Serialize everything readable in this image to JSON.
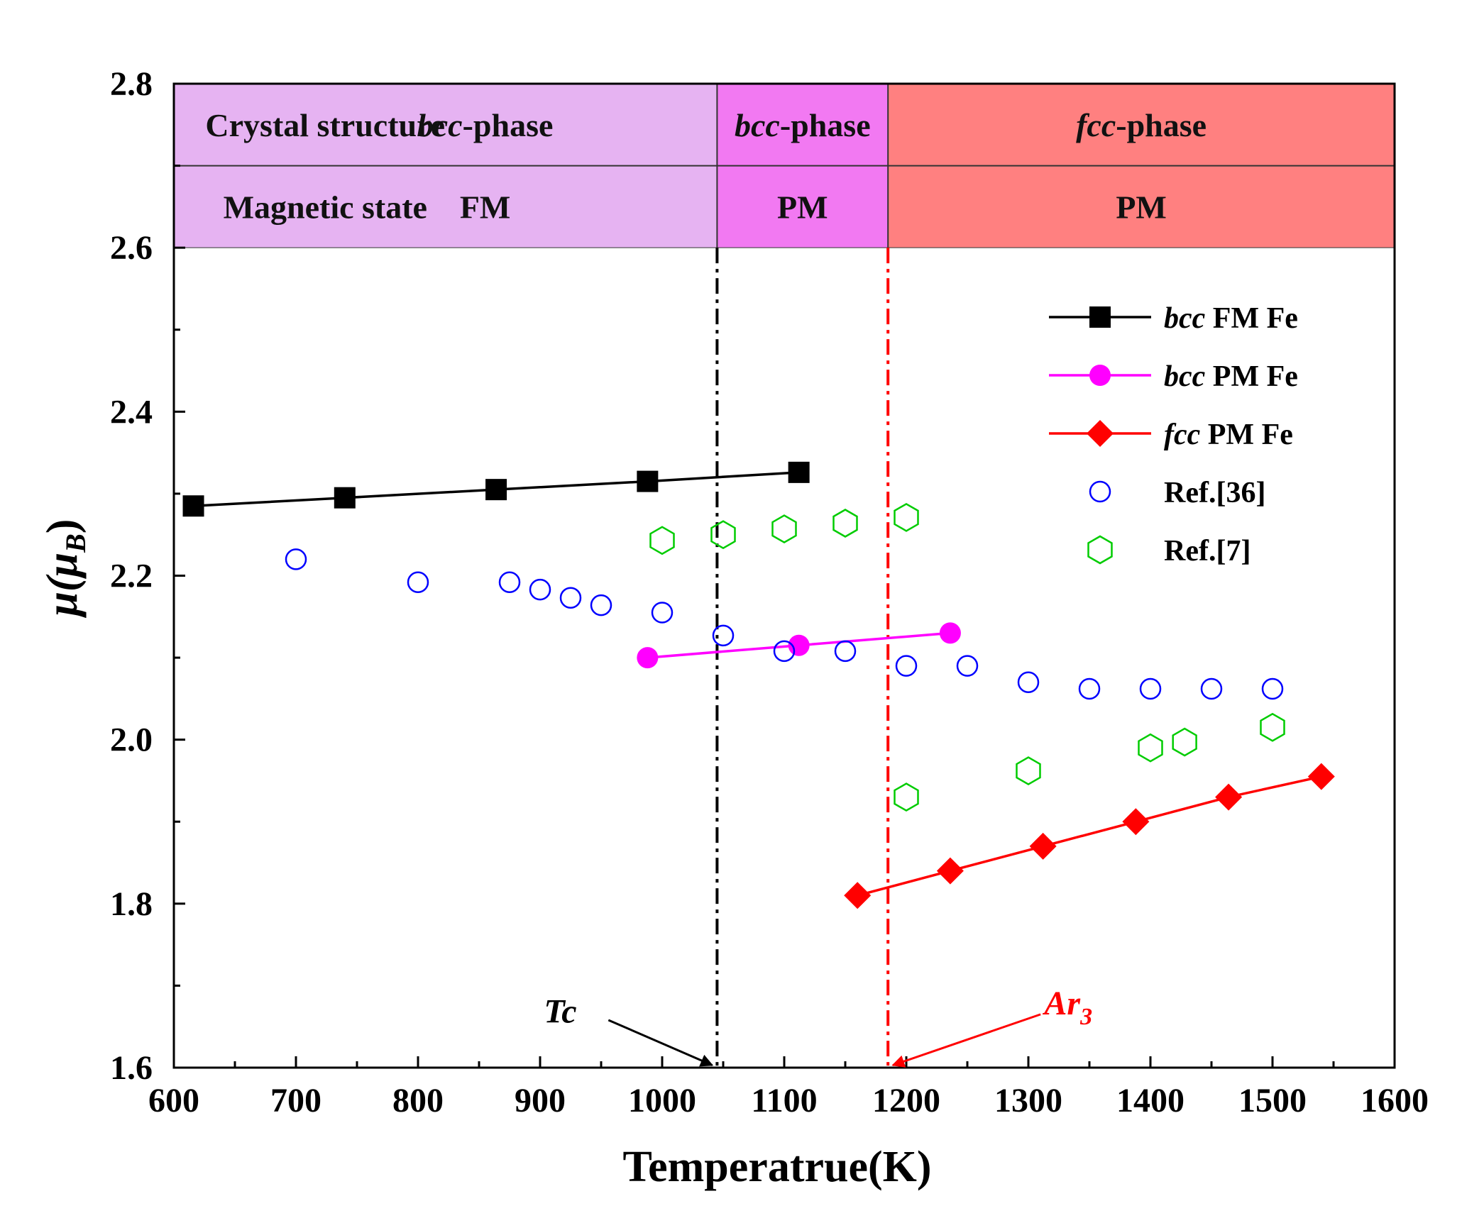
{
  "chart_data": {
    "type": "line",
    "xlabel": "Temperatrue(K)",
    "ylabel_main": "μ(μ",
    "ylabel_sub": "B",
    "ylabel_close": ")",
    "xlim": [
      600,
      1600
    ],
    "ylim": [
      1.6,
      2.8
    ],
    "xticks": [
      600,
      700,
      800,
      900,
      1000,
      1100,
      1200,
      1300,
      1400,
      1500,
      1600
    ],
    "yticks": [
      1.6,
      1.8,
      2.0,
      2.2,
      2.4,
      2.6,
      2.8
    ],
    "ytick_labels": [
      "1.6",
      "1.8",
      "2.0",
      "2.2",
      "2.4",
      "2.6",
      "2.8"
    ],
    "header_table": {
      "rows": [
        {
          "label": "Crystal structure",
          "cells": [
            {
              "italic": "bcc",
              "text": "-phase"
            },
            {
              "italic": "bcc",
              "text": "-phase"
            },
            {
              "italic": "fcc",
              "text": "-phase"
            }
          ]
        },
        {
          "label": "Magnetic state",
          "cells": [
            {
              "italic": "",
              "text": "FM"
            },
            {
              "italic": "",
              "text": "PM"
            },
            {
              "italic": "",
              "text": "PM"
            }
          ]
        }
      ],
      "regions": [
        {
          "from": 600,
          "to": 1045,
          "color": "#e6b3f2"
        },
        {
          "from": 1045,
          "to": 1185,
          "color": "#f279f2"
        },
        {
          "from": 1185,
          "to": 1600,
          "color": "#ff8080"
        }
      ]
    },
    "vlines": [
      {
        "x": 1045,
        "color": "#000000",
        "label": "Tc",
        "label_sub": ""
      },
      {
        "x": 1185,
        "color": "#ff0000",
        "label": "Ar",
        "label_sub": "3"
      }
    ],
    "series": [
      {
        "name_italic": "bcc",
        "name": " FM Fe",
        "color": "#000000",
        "marker": "square",
        "line": true,
        "x": [
          616,
          740,
          864,
          988,
          1112
        ],
        "y": [
          2.285,
          2.295,
          2.305,
          2.315,
          2.326
        ]
      },
      {
        "name_italic": "bcc",
        "name": " PM Fe",
        "color": "#ff00ff",
        "marker": "circle",
        "line": true,
        "x": [
          988,
          1112,
          1236
        ],
        "y": [
          2.1,
          2.115,
          2.13
        ]
      },
      {
        "name_italic": "fcc",
        "name": " PM Fe",
        "color": "#ff0000",
        "marker": "diamond",
        "line": true,
        "x": [
          1160,
          1236,
          1312,
          1388,
          1464,
          1540
        ],
        "y": [
          1.81,
          1.84,
          1.87,
          1.9,
          1.93,
          1.955
        ]
      },
      {
        "name_italic": "",
        "name": "Ref.[36]",
        "color": "#0000ff",
        "marker": "open-circle",
        "line": false,
        "x": [
          700,
          800,
          875,
          900,
          925,
          950,
          1000,
          1050,
          1100,
          1150,
          1200,
          1250,
          1300,
          1350,
          1400,
          1450,
          1500
        ],
        "y": [
          2.22,
          2.192,
          2.192,
          2.183,
          2.173,
          2.164,
          2.155,
          2.127,
          2.108,
          2.108,
          2.09,
          2.09,
          2.07,
          2.062,
          2.062,
          2.062,
          2.062
        ]
      },
      {
        "name_italic": "",
        "name": "Ref.[7]",
        "color": "#00cc00",
        "marker": "open-hexagon",
        "line": false,
        "x": [
          1000,
          1050,
          1100,
          1150,
          1200,
          1200,
          1300,
          1400,
          1428,
          1500
        ],
        "y": [
          2.243,
          2.25,
          2.257,
          2.264,
          2.271,
          1.93,
          1.962,
          1.99,
          1.997,
          2.015
        ]
      }
    ]
  }
}
